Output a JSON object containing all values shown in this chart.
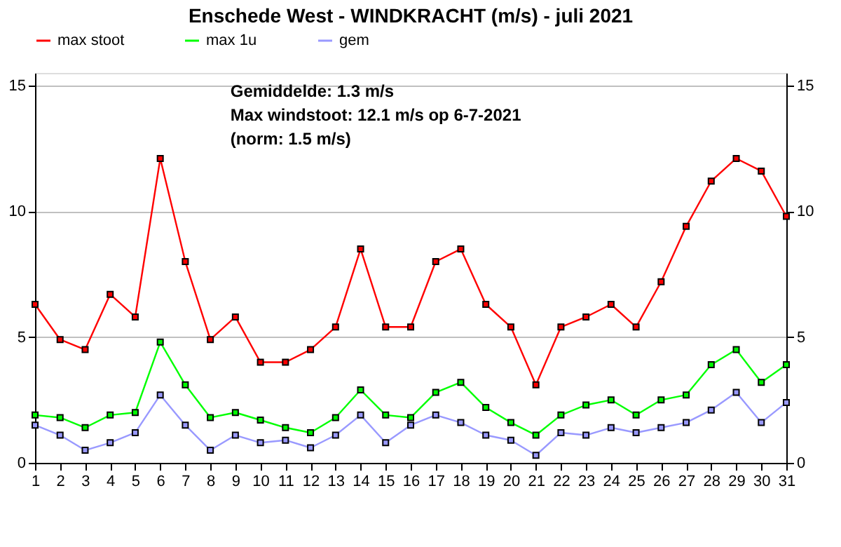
{
  "chart_data": {
    "type": "line",
    "title": "Enschede West  -  WINDKRACHT (m/s)  - juli 2021",
    "x": [
      1,
      2,
      3,
      4,
      5,
      6,
      7,
      8,
      9,
      10,
      11,
      12,
      13,
      14,
      15,
      16,
      17,
      18,
      19,
      20,
      21,
      22,
      23,
      24,
      25,
      26,
      27,
      28,
      29,
      30,
      31
    ],
    "series": [
      {
        "name": "max stoot",
        "color": "#ff0000",
        "values": [
          6.3,
          4.9,
          4.5,
          6.7,
          5.8,
          12.1,
          8.0,
          4.9,
          5.8,
          4.0,
          4.0,
          4.5,
          5.4,
          8.5,
          5.4,
          5.4,
          8.0,
          8.5,
          6.3,
          5.4,
          3.1,
          5.4,
          5.8,
          6.3,
          5.4,
          7.2,
          9.4,
          11.2,
          12.1,
          11.6,
          9.8
        ]
      },
      {
        "name": "max 1u",
        "color": "#00ff00",
        "values": [
          1.9,
          1.8,
          1.4,
          1.9,
          2.0,
          4.8,
          3.1,
          1.8,
          2.0,
          1.7,
          1.4,
          1.2,
          1.8,
          2.9,
          1.9,
          1.8,
          2.8,
          3.2,
          2.2,
          1.6,
          1.1,
          1.9,
          2.3,
          2.5,
          1.9,
          2.5,
          2.7,
          3.9,
          4.5,
          3.2,
          3.9
        ]
      },
      {
        "name": "gem",
        "color": "#9999ff",
        "values": [
          1.5,
          1.1,
          0.5,
          0.8,
          1.2,
          2.7,
          1.5,
          0.5,
          1.1,
          0.8,
          0.9,
          0.6,
          1.1,
          1.9,
          0.8,
          1.5,
          1.9,
          1.6,
          1.1,
          0.9,
          0.3,
          1.2,
          1.1,
          1.4,
          1.2,
          1.4,
          1.6,
          2.1,
          2.8,
          1.6,
          2.4
        ]
      }
    ],
    "xlim": [
      1,
      31
    ],
    "xticks": [
      1,
      2,
      3,
      4,
      5,
      6,
      7,
      8,
      9,
      10,
      11,
      12,
      13,
      14,
      15,
      16,
      17,
      18,
      19,
      20,
      21,
      22,
      23,
      24,
      25,
      26,
      27,
      28,
      29,
      30,
      31
    ],
    "ylim": [
      0,
      15.5
    ],
    "yticks": [
      0,
      5,
      10,
      15
    ],
    "y2lim": [
      0,
      15.5
    ],
    "y2ticks": [
      0,
      5,
      10,
      15
    ],
    "grid": "y",
    "legend": "top",
    "marker": "square",
    "line_style": "solid",
    "annotations": [
      "Gemiddelde: 1.3 m/s",
      "Max windstoot: 12.1 m/s op 6-7-2021",
      "(norm: 1.5 m/s)"
    ]
  }
}
